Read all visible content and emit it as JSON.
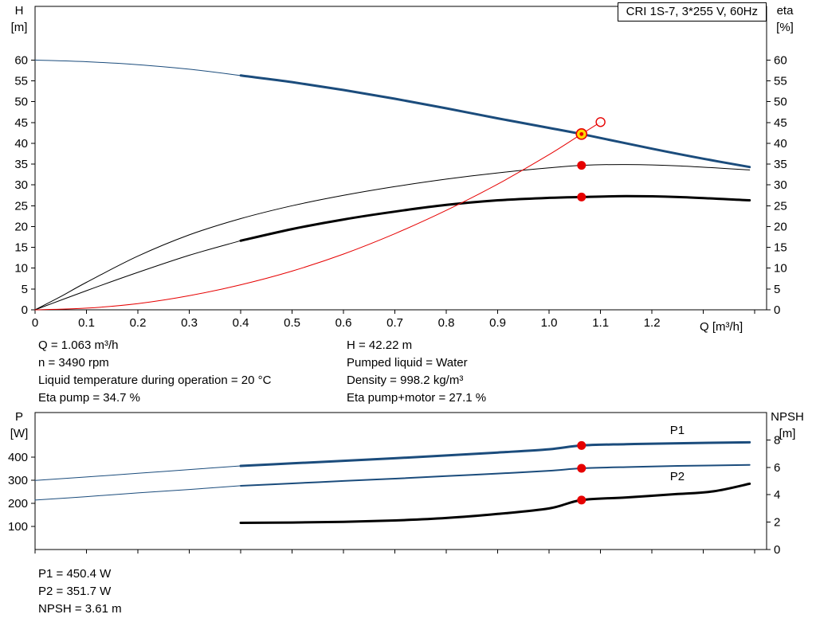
{
  "header": {
    "title": "CRI 1S-7, 3*255 V, 60Hz"
  },
  "colors": {
    "blue": "#1b4c7c",
    "red": "#e60000",
    "black": "#000000",
    "yellow": "#ffd800"
  },
  "charts": {
    "top": {
      "left_name": "H",
      "left_unit": "[m]",
      "right_name": "eta",
      "right_unit": "[%]",
      "x_label": "Q [m³/h]"
    },
    "bottom": {
      "left_name": "P",
      "left_unit": "[W]",
      "right_name": "NPSH",
      "right_unit": "[m]"
    }
  },
  "annotations": {
    "mid_left": [
      "Q = 1.063 m³/h",
      "n = 3490 rpm",
      "Liquid temperature during operation = 20 °C",
      "Eta pump = 34.7 %"
    ],
    "mid_right": [
      "H = 42.22 m",
      "Pumped liquid = Water",
      "Density = 998.2 kg/m³",
      "Eta pump+motor = 27.1 %"
    ],
    "bottom": [
      "P1 = 450.4 W",
      "P2 = 351.7 W",
      "NPSH = 3.61 m"
    ]
  },
  "chart_data": [
    {
      "type": "line",
      "title": "CRI 1S-7 QH and efficiency curves",
      "xlabel": "Q [m³/h]",
      "ylabel_left": "H [m]",
      "ylabel_right": "eta [%]",
      "xlim": [
        0,
        1.423
      ],
      "ylim_left": [
        0,
        72.9
      ],
      "ylim_right": [
        0,
        72.9
      ],
      "grid": false,
      "x_ticks": [
        {
          "v": 0,
          "label": "0"
        },
        {
          "v": 0.1,
          "label": "0.1"
        },
        {
          "v": 0.2,
          "label": "0.2"
        },
        {
          "v": 0.3,
          "label": "0.3"
        },
        {
          "v": 0.4,
          "label": "0.4"
        },
        {
          "v": 0.5,
          "label": "0.5"
        },
        {
          "v": 0.6,
          "label": "0.6"
        },
        {
          "v": 0.7,
          "label": "0.7"
        },
        {
          "v": 0.8,
          "label": "0.8"
        },
        {
          "v": 0.9,
          "label": "0.9"
        },
        {
          "v": 1.0,
          "label": "1.0"
        },
        {
          "v": 1.1,
          "label": "1.1"
        },
        {
          "v": 1.2,
          "label": "1.2"
        },
        {
          "v": 1.3
        },
        {
          "v": 1.4
        }
      ],
      "y_ticks_left": [
        0,
        5,
        10,
        15,
        20,
        25,
        30,
        35,
        40,
        45,
        50,
        55,
        60
      ],
      "y_ticks_right": [
        0,
        5,
        10,
        15,
        20,
        25,
        30,
        35,
        40,
        45,
        50,
        55,
        60
      ],
      "series": [
        {
          "name": "qh-curve-low-flow",
          "color": "blue",
          "width": 1,
          "points": [
            [
              0,
              60
            ],
            [
              0.1,
              59.6
            ],
            [
              0.2,
              58.9
            ],
            [
              0.3,
              57.8
            ],
            [
              0.4,
              56.3
            ]
          ]
        },
        {
          "name": "qh-curve",
          "color": "blue",
          "width": 3,
          "points": [
            [
              0.4,
              56.3
            ],
            [
              0.5,
              54.7
            ],
            [
              0.6,
              52.8
            ],
            [
              0.7,
              50.7
            ],
            [
              0.8,
              48.4
            ],
            [
              0.9,
              46.0
            ],
            [
              1.0,
              43.7
            ],
            [
              1.063,
              42.22
            ],
            [
              1.2,
              38.7
            ],
            [
              1.3,
              36.3
            ],
            [
              1.39,
              34.3
            ]
          ]
        },
        {
          "name": "eta-pump-curve",
          "color": "black",
          "width": 1,
          "points": [
            [
              0,
              0
            ],
            [
              0.05,
              3.2
            ],
            [
              0.1,
              6.6
            ],
            [
              0.2,
              12.9
            ],
            [
              0.3,
              18.0
            ],
            [
              0.4,
              21.9
            ],
            [
              0.5,
              25.0
            ],
            [
              0.6,
              27.5
            ],
            [
              0.7,
              29.6
            ],
            [
              0.8,
              31.4
            ],
            [
              0.9,
              32.9
            ],
            [
              1.0,
              34.1
            ],
            [
              1.063,
              34.7
            ],
            [
              1.15,
              34.9
            ],
            [
              1.25,
              34.6
            ],
            [
              1.39,
              33.6
            ]
          ]
        },
        {
          "name": "eta-pump-motor-low-flow",
          "color": "black",
          "width": 1,
          "points": [
            [
              0,
              0
            ],
            [
              0.1,
              4.6
            ],
            [
              0.2,
              9.0
            ],
            [
              0.3,
              13.1
            ],
            [
              0.4,
              16.6
            ]
          ]
        },
        {
          "name": "eta-pump-motor-curve",
          "color": "black",
          "width": 3,
          "points": [
            [
              0.4,
              16.6
            ],
            [
              0.5,
              19.4
            ],
            [
              0.6,
              21.7
            ],
            [
              0.7,
              23.6
            ],
            [
              0.8,
              25.2
            ],
            [
              0.9,
              26.3
            ],
            [
              1.0,
              26.9
            ],
            [
              1.063,
              27.1
            ],
            [
              1.15,
              27.3
            ],
            [
              1.25,
              27.1
            ],
            [
              1.39,
              26.3
            ]
          ]
        },
        {
          "name": "system-curve",
          "color": "red",
          "width": 1,
          "points": [
            [
              0,
              0
            ],
            [
              0.1,
              0.4
            ],
            [
              0.2,
              1.5
            ],
            [
              0.3,
              3.4
            ],
            [
              0.4,
              6.0
            ],
            [
              0.5,
              9.3
            ],
            [
              0.6,
              13.4
            ],
            [
              0.7,
              18.3
            ],
            [
              0.8,
              23.9
            ],
            [
              0.9,
              30.2
            ],
            [
              1.0,
              37.3
            ],
            [
              1.063,
              42.22
            ],
            [
              1.1,
              45.1
            ]
          ]
        }
      ],
      "markers": [
        {
          "name": "requested-duty-point",
          "q": 1.1,
          "value": 45.1,
          "style": "open-red"
        },
        {
          "name": "duty-point",
          "q": 1.063,
          "value": 42.22,
          "style": "duty"
        },
        {
          "name": "eta-pump-duty",
          "q": 1.063,
          "value": 34.7,
          "style": "red"
        },
        {
          "name": "eta-pump-motor-duty",
          "q": 1.063,
          "value": 27.1,
          "style": "red"
        }
      ]
    },
    {
      "type": "line",
      "title": "Power and NPSH curves",
      "xlabel": "Q [m³/h]",
      "ylabel_left": "P [W]",
      "ylabel_right": "NPSH [m]",
      "xlim": [
        0,
        1.423
      ],
      "ylim_left": [
        0,
        593
      ],
      "ylim_right": [
        0,
        10
      ],
      "grid": false,
      "x_ticks": [
        {
          "v": 0
        },
        {
          "v": 0.1
        },
        {
          "v": 0.2
        },
        {
          "v": 0.3
        },
        {
          "v": 0.4
        },
        {
          "v": 0.5
        },
        {
          "v": 0.6
        },
        {
          "v": 0.7
        },
        {
          "v": 0.8
        },
        {
          "v": 0.9
        },
        {
          "v": 1.0
        },
        {
          "v": 1.1
        },
        {
          "v": 1.2
        },
        {
          "v": 1.3
        },
        {
          "v": 1.4
        }
      ],
      "y_ticks_left": [
        100,
        200,
        300,
        400
      ],
      "y_ticks_right": [
        0,
        2,
        4,
        6,
        8
      ],
      "series": [
        {
          "name": "p1-low-flow",
          "axis": "left",
          "color": "blue",
          "width": 1,
          "points": [
            [
              0,
              299
            ],
            [
              0.1,
              314
            ],
            [
              0.2,
              330
            ],
            [
              0.3,
              346
            ],
            [
              0.4,
              362
            ]
          ]
        },
        {
          "name": "p1-curve",
          "axis": "left",
          "color": "blue",
          "width": 3,
          "points": [
            [
              0.4,
              362
            ],
            [
              0.5,
              373
            ],
            [
              0.6,
              384
            ],
            [
              0.7,
              395
            ],
            [
              0.8,
              407
            ],
            [
              0.9,
              420
            ],
            [
              1.0,
              434
            ],
            [
              1.063,
              450.4
            ],
            [
              1.15,
              456
            ],
            [
              1.25,
              460
            ],
            [
              1.39,
              464
            ]
          ],
          "label": {
            "text": "P1",
            "q": 1.235,
            "value": 500
          }
        },
        {
          "name": "p2-low-flow",
          "axis": "left",
          "color": "blue",
          "width": 1,
          "points": [
            [
              0,
              214
            ],
            [
              0.1,
              229
            ],
            [
              0.2,
              245
            ],
            [
              0.3,
              260
            ],
            [
              0.4,
              276
            ]
          ]
        },
        {
          "name": "p2-curve",
          "axis": "left",
          "color": "blue",
          "width": 2,
          "points": [
            [
              0.4,
              276
            ],
            [
              0.5,
              286
            ],
            [
              0.6,
              297
            ],
            [
              0.7,
              307
            ],
            [
              0.8,
              318
            ],
            [
              0.9,
              329
            ],
            [
              1.0,
              341
            ],
            [
              1.063,
              351.7
            ],
            [
              1.15,
              357
            ],
            [
              1.25,
              362
            ],
            [
              1.39,
              366
            ]
          ],
          "label": {
            "text": "P2",
            "q": 1.235,
            "value": 300
          }
        },
        {
          "name": "npsh-curve",
          "axis": "right",
          "color": "black",
          "width": 3,
          "points": [
            [
              0.4,
              1.95
            ],
            [
              0.5,
              1.97
            ],
            [
              0.6,
              2.02
            ],
            [
              0.7,
              2.12
            ],
            [
              0.8,
              2.3
            ],
            [
              0.9,
              2.6
            ],
            [
              1.0,
              3.0
            ],
            [
              1.063,
              3.61
            ],
            [
              1.15,
              3.8
            ],
            [
              1.25,
              4.05
            ],
            [
              1.32,
              4.25
            ],
            [
              1.39,
              4.8
            ]
          ]
        }
      ],
      "markers": [
        {
          "name": "p1-duty",
          "axis": "left",
          "q": 1.063,
          "value": 450.4,
          "style": "red"
        },
        {
          "name": "p2-duty",
          "axis": "left",
          "q": 1.063,
          "value": 351.7,
          "style": "red"
        },
        {
          "name": "npsh-duty",
          "axis": "right",
          "q": 1.063,
          "value": 3.61,
          "style": "red"
        }
      ]
    }
  ]
}
